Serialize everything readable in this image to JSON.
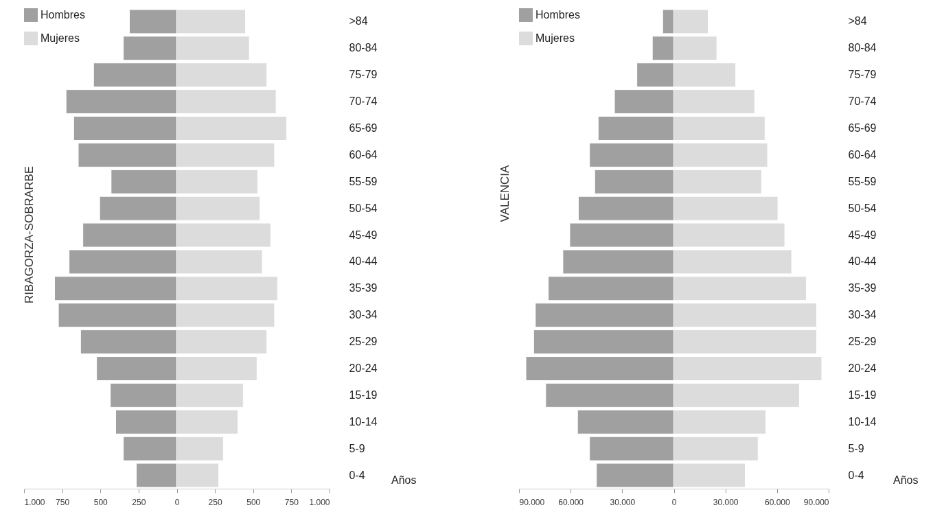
{
  "chart_data": [
    {
      "type": "bar",
      "orientation": "horizontal",
      "stacked": true,
      "ylabel": "RIBAGORZA-SOBRARBE",
      "legend": "top left",
      "annotations": [
        "Años"
      ],
      "categories": [
        ">84",
        "80-84",
        "75-79",
        "70-74",
        "65-69",
        "60-64",
        "55-59",
        "50-54",
        "45-49",
        "40-44",
        "35-39",
        "30-34",
        "25-29",
        "20-24",
        "15-19",
        "10-14",
        "5-9",
        "0-4"
      ],
      "series": [
        {
          "name": "Hombres",
          "color": "#a0a0a0",
          "values": [
            -310,
            -350,
            -545,
            -725,
            -675,
            -645,
            -430,
            -505,
            -615,
            -705,
            -800,
            -775,
            -630,
            -525,
            -435,
            -400,
            -350,
            -265
          ]
        },
        {
          "name": "Mujeres",
          "color": "#dcdcdc",
          "values": [
            450,
            475,
            590,
            650,
            720,
            640,
            530,
            545,
            615,
            560,
            660,
            640,
            590,
            525,
            435,
            400,
            305,
            275
          ]
        }
      ],
      "xlim": [
        -1000,
        1000
      ],
      "xticks": [
        {
          "value": -1000,
          "label": "1.000"
        },
        {
          "value": -750,
          "label": "750"
        },
        {
          "value": -500,
          "label": "500"
        },
        {
          "value": -250,
          "label": "250"
        },
        0,
        250,
        500,
        750,
        {
          "value": 1000,
          "label": "1.000"
        }
      ]
    },
    {
      "type": "bar",
      "orientation": "horizontal",
      "stacked": true,
      "ylabel": "VALENCIA",
      "legend": "top left",
      "annotations": [
        "Años"
      ],
      "categories": [
        ">84",
        "80-84",
        "75-79",
        "70-74",
        "65-69",
        "60-64",
        "55-59",
        "50-54",
        "45-49",
        "40-44",
        "35-39",
        "30-34",
        "25-29",
        "20-24",
        "15-19",
        "10-14",
        "5-9",
        "0-4"
      ],
      "series": [
        {
          "name": "Hombres",
          "color": "#a0a0a0",
          "values": [
            -6500,
            -12500,
            -21500,
            -34500,
            -44000,
            -49000,
            -46000,
            -55500,
            -60500,
            -64500,
            -73000,
            -80500,
            -81500,
            -86000,
            -74500,
            -56000,
            -49000,
            -45000
          ]
        },
        {
          "name": "Mujeres",
          "color": "#dcdcdc",
          "values": [
            20000,
            25000,
            36000,
            47000,
            53000,
            54500,
            51000,
            60500,
            64500,
            68500,
            77000,
            83000,
            83000,
            86000,
            73000,
            53500,
            49000,
            41500
          ]
        }
      ],
      "xlim": [
        -90000,
        90000
      ],
      "xticks": [
        {
          "value": -90000,
          "label": "90.000"
        },
        {
          "value": -60000,
          "label": "60.000"
        },
        {
          "value": -30000,
          "label": "30.000"
        },
        0,
        {
          "value": 30000,
          "label": "30.000"
        },
        {
          "value": 60000,
          "label": "60.000"
        },
        {
          "value": 90000,
          "label": "90.000"
        }
      ]
    }
  ]
}
